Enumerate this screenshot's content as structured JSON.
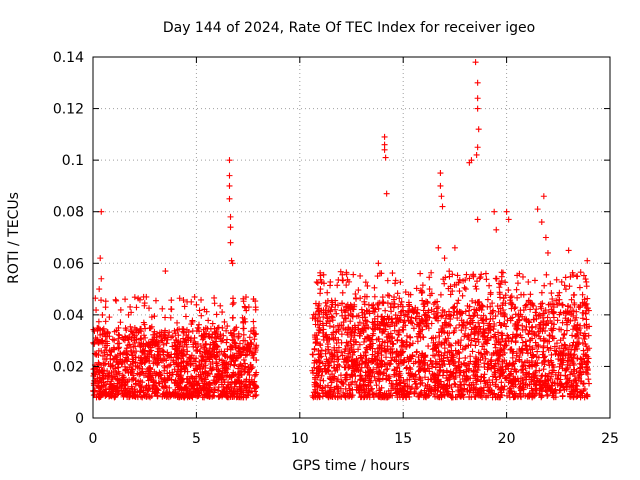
{
  "chart_data": {
    "type": "scatter",
    "title": "Day 144 of 2024, Rate Of TEC Index for receiver igeo",
    "xlabel": "GPS time / hours",
    "ylabel": "ROTI / TECUs",
    "xlim": [
      0,
      25
    ],
    "ylim": [
      0,
      0.14
    ],
    "x_ticks": [
      0,
      5,
      10,
      15,
      20,
      25
    ],
    "x_tick_labels": [
      "0",
      "5",
      "10",
      "15",
      "20",
      "25"
    ],
    "y_ticks": [
      0,
      0.02,
      0.04,
      0.06,
      0.08,
      0.1,
      0.12,
      0.14
    ],
    "y_tick_labels": [
      "0",
      "0.02",
      "0.04",
      "0.06",
      "0.08",
      "0.1",
      "0.12",
      "0.14"
    ],
    "grid": true,
    "marker": "+",
    "marker_color": "#ff0000",
    "series": [
      {
        "name": "ROTI",
        "segments": [
          {
            "x_range": [
              0.0,
              7.9
            ],
            "typical_range": [
              0.008,
              0.035
            ]
          },
          {
            "x_range": [
              10.6,
              24.0
            ],
            "typical_range": [
              0.008,
              0.045
            ]
          }
        ],
        "outliers": [
          {
            "x": 0.3,
            "y": 0.05
          },
          {
            "x": 0.35,
            "y": 0.062
          },
          {
            "x": 0.4,
            "y": 0.08
          },
          {
            "x": 0.4,
            "y": 0.054
          },
          {
            "x": 3.5,
            "y": 0.057
          },
          {
            "x": 6.6,
            "y": 0.1
          },
          {
            "x": 6.6,
            "y": 0.094
          },
          {
            "x": 6.6,
            "y": 0.09
          },
          {
            "x": 6.6,
            "y": 0.085
          },
          {
            "x": 6.65,
            "y": 0.078
          },
          {
            "x": 6.65,
            "y": 0.074
          },
          {
            "x": 6.65,
            "y": 0.068
          },
          {
            "x": 6.7,
            "y": 0.061
          },
          {
            "x": 6.75,
            "y": 0.06
          },
          {
            "x": 11.0,
            "y": 0.05
          },
          {
            "x": 14.1,
            "y": 0.109
          },
          {
            "x": 14.1,
            "y": 0.106
          },
          {
            "x": 14.1,
            "y": 0.104
          },
          {
            "x": 14.15,
            "y": 0.101
          },
          {
            "x": 14.2,
            "y": 0.087
          },
          {
            "x": 13.8,
            "y": 0.06
          },
          {
            "x": 16.8,
            "y": 0.095
          },
          {
            "x": 16.8,
            "y": 0.09
          },
          {
            "x": 16.85,
            "y": 0.086
          },
          {
            "x": 16.9,
            "y": 0.082
          },
          {
            "x": 16.7,
            "y": 0.066
          },
          {
            "x": 18.2,
            "y": 0.099
          },
          {
            "x": 18.3,
            "y": 0.1
          },
          {
            "x": 18.5,
            "y": 0.138
          },
          {
            "x": 18.6,
            "y": 0.13
          },
          {
            "x": 18.6,
            "y": 0.124
          },
          {
            "x": 18.6,
            "y": 0.12
          },
          {
            "x": 18.65,
            "y": 0.112
          },
          {
            "x": 18.6,
            "y": 0.105
          },
          {
            "x": 18.55,
            "y": 0.102
          },
          {
            "x": 18.6,
            "y": 0.077
          },
          {
            "x": 19.4,
            "y": 0.08
          },
          {
            "x": 19.5,
            "y": 0.073
          },
          {
            "x": 20.0,
            "y": 0.08
          },
          {
            "x": 20.1,
            "y": 0.077
          },
          {
            "x": 17.5,
            "y": 0.066
          },
          {
            "x": 17.0,
            "y": 0.062
          },
          {
            "x": 21.5,
            "y": 0.081
          },
          {
            "x": 21.8,
            "y": 0.086
          },
          {
            "x": 21.7,
            "y": 0.076
          },
          {
            "x": 21.9,
            "y": 0.07
          },
          {
            "x": 22.0,
            "y": 0.064
          },
          {
            "x": 23.0,
            "y": 0.065
          },
          {
            "x": 23.9,
            "y": 0.061
          }
        ]
      }
    ]
  }
}
